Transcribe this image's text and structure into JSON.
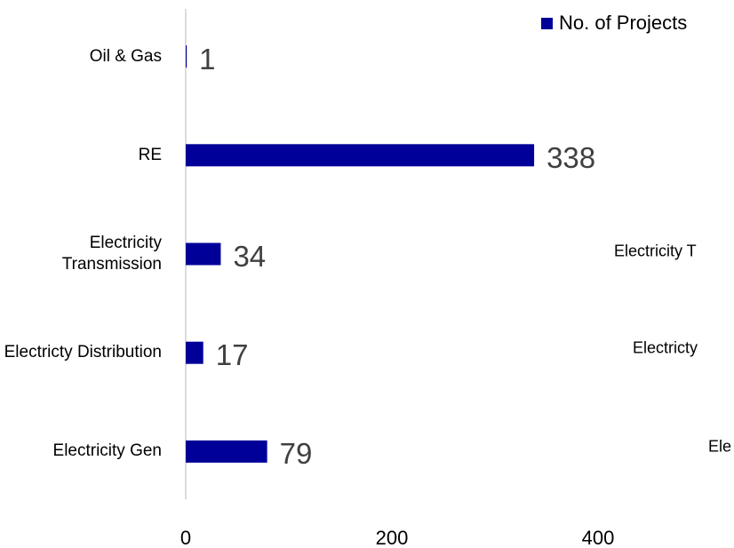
{
  "chart_data": {
    "type": "hbar",
    "categories": [
      "Oil & Gas",
      "RE",
      "Electricity Transmission",
      "Electricty Distribution",
      "Electricity Gen"
    ],
    "series": [
      {
        "name": "No. of Projects",
        "color": "#000099",
        "values": [
          1,
          338,
          34,
          17,
          79
        ]
      }
    ],
    "xlim": [
      0,
      400
    ],
    "xticks": [
      0,
      200,
      400
    ],
    "legend": "top-right",
    "annotations": [
      "Electricity T",
      "Electricty",
      "Ele"
    ]
  }
}
